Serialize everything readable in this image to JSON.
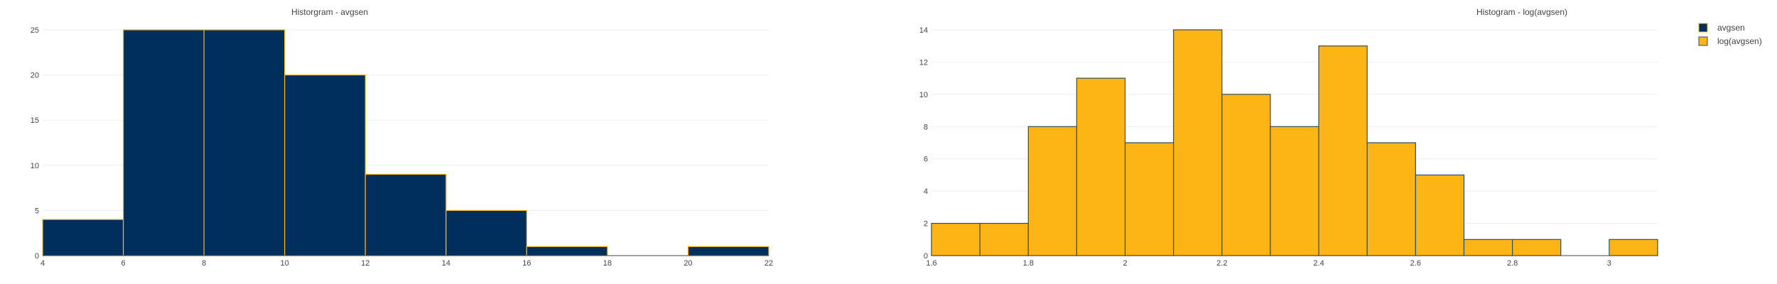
{
  "legend": {
    "placement": "top-right",
    "items": [
      {
        "label": "avgsen",
        "color": "#002F5E"
      },
      {
        "label": "log(avgsen)",
        "color": "#FDB515"
      }
    ]
  },
  "chart_data": [
    {
      "type": "bar",
      "subtype": "histogram",
      "title": "Historgram - avgsen",
      "xlabel": "",
      "ylabel": "",
      "fill": "#002F5E",
      "edge": "#FDB515",
      "grid": true,
      "xlim": [
        4,
        22
      ],
      "ylim": [
        0,
        25
      ],
      "xticks": [
        4,
        6,
        8,
        10,
        12,
        14,
        16,
        18,
        20,
        22
      ],
      "yticks": [
        0,
        5,
        10,
        15,
        20,
        25
      ],
      "bins": [
        {
          "x0": 4,
          "x1": 6,
          "count": 4
        },
        {
          "x0": 6,
          "x1": 8,
          "count": 25
        },
        {
          "x0": 8,
          "x1": 10,
          "count": 25
        },
        {
          "x0": 10,
          "x1": 12,
          "count": 20
        },
        {
          "x0": 12,
          "x1": 14,
          "count": 9
        },
        {
          "x0": 14,
          "x1": 16,
          "count": 5
        },
        {
          "x0": 16,
          "x1": 18,
          "count": 1
        },
        {
          "x0": 18,
          "x1": 20,
          "count": 0
        },
        {
          "x0": 20,
          "x1": 22,
          "count": 1
        }
      ]
    },
    {
      "type": "bar",
      "subtype": "histogram",
      "title": "Histogram - log(avgsen)",
      "xlabel": "",
      "ylabel": "",
      "fill": "#FDB515",
      "edge": "#2F4F5F",
      "grid": true,
      "xlim": [
        1.6,
        3.1
      ],
      "ylim": [
        0,
        14
      ],
      "xticks": [
        1.6,
        1.8,
        2,
        2.2,
        2.4,
        2.6,
        2.8,
        3
      ],
      "yticks": [
        0,
        2,
        4,
        6,
        8,
        10,
        12,
        14
      ],
      "bins": [
        {
          "x0": 1.6,
          "x1": 1.7,
          "count": 2
        },
        {
          "x0": 1.7,
          "x1": 1.8,
          "count": 2
        },
        {
          "x0": 1.8,
          "x1": 1.9,
          "count": 8
        },
        {
          "x0": 1.9,
          "x1": 2.0,
          "count": 11
        },
        {
          "x0": 2.0,
          "x1": 2.1,
          "count": 7
        },
        {
          "x0": 2.1,
          "x1": 2.2,
          "count": 14
        },
        {
          "x0": 2.2,
          "x1": 2.3,
          "count": 10
        },
        {
          "x0": 2.3,
          "x1": 2.4,
          "count": 8
        },
        {
          "x0": 2.4,
          "x1": 2.5,
          "count": 13
        },
        {
          "x0": 2.5,
          "x1": 2.6,
          "count": 7
        },
        {
          "x0": 2.6,
          "x1": 2.7,
          "count": 5
        },
        {
          "x0": 2.7,
          "x1": 2.8,
          "count": 1
        },
        {
          "x0": 2.8,
          "x1": 2.9,
          "count": 1
        },
        {
          "x0": 2.9,
          "x1": 3.0,
          "count": 0
        },
        {
          "x0": 3.0,
          "x1": 3.1,
          "count": 1
        }
      ]
    }
  ]
}
